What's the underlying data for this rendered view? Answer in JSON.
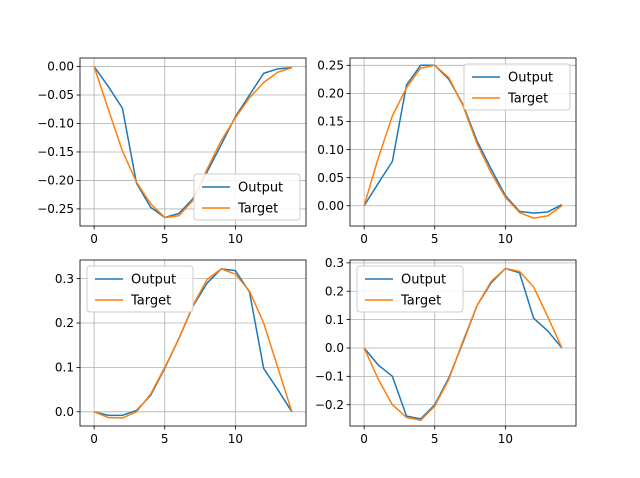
{
  "chart_data": [
    {
      "type": "line",
      "x": [
        0,
        1,
        2,
        3,
        4,
        5,
        6,
        7,
        8,
        9,
        10,
        11,
        12,
        13,
        14
      ],
      "series": [
        {
          "name": "Output",
          "color": "#1f77b4",
          "values": [
            0.0,
            -0.035,
            -0.073,
            -0.205,
            -0.247,
            -0.265,
            -0.258,
            -0.232,
            -0.185,
            -0.137,
            -0.088,
            -0.05,
            -0.012,
            -0.004,
            -0.002
          ]
        },
        {
          "name": "Target",
          "color": "#ff7f0e",
          "values": [
            0.0,
            -0.075,
            -0.148,
            -0.203,
            -0.241,
            -0.265,
            -0.262,
            -0.235,
            -0.18,
            -0.13,
            -0.09,
            -0.055,
            -0.028,
            -0.01,
            -0.002
          ]
        }
      ],
      "xlim": [
        -1,
        15
      ],
      "ylim": [
        -0.28,
        0.015
      ],
      "xticks": [
        0,
        5,
        10
      ],
      "yticks": [
        0.0,
        -0.05,
        -0.1,
        -0.15,
        -0.2,
        -0.25
      ],
      "xtick_labels": [
        "0",
        "5",
        "10"
      ],
      "ytick_labels": [
        "0.00",
        "−0.05",
        "−0.10",
        "−0.15",
        "−0.20",
        "−0.25"
      ],
      "grid": true,
      "legend": "lower-right"
    },
    {
      "type": "line",
      "x": [
        0,
        1,
        2,
        3,
        4,
        5,
        6,
        7,
        8,
        9,
        10,
        11,
        12,
        13,
        14
      ],
      "series": [
        {
          "name": "Output",
          "color": "#1f77b4",
          "values": [
            0.0,
            0.04,
            0.079,
            0.215,
            0.25,
            0.25,
            0.225,
            0.18,
            0.115,
            0.065,
            0.018,
            -0.01,
            -0.013,
            -0.011,
            0.002
          ]
        },
        {
          "name": "Target",
          "color": "#ff7f0e",
          "values": [
            0.0,
            0.085,
            0.16,
            0.21,
            0.245,
            0.25,
            0.228,
            0.178,
            0.11,
            0.058,
            0.015,
            -0.012,
            -0.022,
            -0.018,
            0.0
          ]
        }
      ],
      "xlim": [
        -1,
        15
      ],
      "ylim": [
        -0.036,
        0.263
      ],
      "xticks": [
        0,
        5,
        10
      ],
      "yticks": [
        0.0,
        0.05,
        0.1,
        0.15,
        0.2,
        0.25
      ],
      "xtick_labels": [
        "0",
        "5",
        "10"
      ],
      "ytick_labels": [
        "0.00",
        "0.05",
        "0.10",
        "0.15",
        "0.20",
        "0.25"
      ],
      "grid": true,
      "legend": "upper-right"
    },
    {
      "type": "line",
      "x": [
        0,
        1,
        2,
        3,
        4,
        5,
        6,
        7,
        8,
        9,
        10,
        11,
        12,
        13,
        14
      ],
      "series": [
        {
          "name": "Output",
          "color": "#1f77b4",
          "values": [
            0.0,
            -0.008,
            -0.008,
            0.003,
            0.037,
            0.098,
            0.165,
            0.238,
            0.29,
            0.322,
            0.318,
            0.27,
            0.098,
            0.05,
            0.0
          ]
        },
        {
          "name": "Target",
          "color": "#ff7f0e",
          "values": [
            0.0,
            -0.013,
            -0.014,
            0.0,
            0.04,
            0.1,
            0.165,
            0.24,
            0.298,
            0.322,
            0.31,
            0.272,
            0.2,
            0.1,
            0.0
          ]
        }
      ],
      "xlim": [
        -1,
        15
      ],
      "ylim": [
        -0.032,
        0.342
      ],
      "xticks": [
        0,
        5,
        10
      ],
      "yticks": [
        0.0,
        0.1,
        0.2,
        0.3
      ],
      "xtick_labels": [
        "0",
        "5",
        "10"
      ],
      "ytick_labels": [
        "0.0",
        "0.1",
        "0.2",
        "0.3"
      ],
      "grid": true,
      "legend": "upper-left"
    },
    {
      "type": "line",
      "x": [
        0,
        1,
        2,
        3,
        4,
        5,
        6,
        7,
        8,
        9,
        10,
        11,
        12,
        13,
        14
      ],
      "series": [
        {
          "name": "Output",
          "color": "#1f77b4",
          "values": [
            0.0,
            -0.06,
            -0.1,
            -0.24,
            -0.25,
            -0.2,
            -0.105,
            0.02,
            0.15,
            0.23,
            0.28,
            0.265,
            0.105,
            0.06,
            0.0
          ]
        },
        {
          "name": "Target",
          "color": "#ff7f0e",
          "values": [
            0.0,
            -0.11,
            -0.2,
            -0.245,
            -0.255,
            -0.205,
            -0.11,
            0.025,
            0.15,
            0.235,
            0.28,
            0.27,
            0.215,
            0.11,
            0.0
          ]
        }
      ],
      "xlim": [
        -1,
        15
      ],
      "ylim": [
        -0.275,
        0.31
      ],
      "xticks": [
        0,
        5,
        10
      ],
      "yticks": [
        -0.2,
        -0.1,
        0.0,
        0.1,
        0.2,
        0.3
      ],
      "xtick_labels": [
        "0",
        "5",
        "10"
      ],
      "ytick_labels": [
        "−0.2",
        "−0.1",
        "0.0",
        "0.1",
        "0.2",
        "0.3"
      ],
      "grid": true,
      "legend": "upper-left"
    }
  ]
}
